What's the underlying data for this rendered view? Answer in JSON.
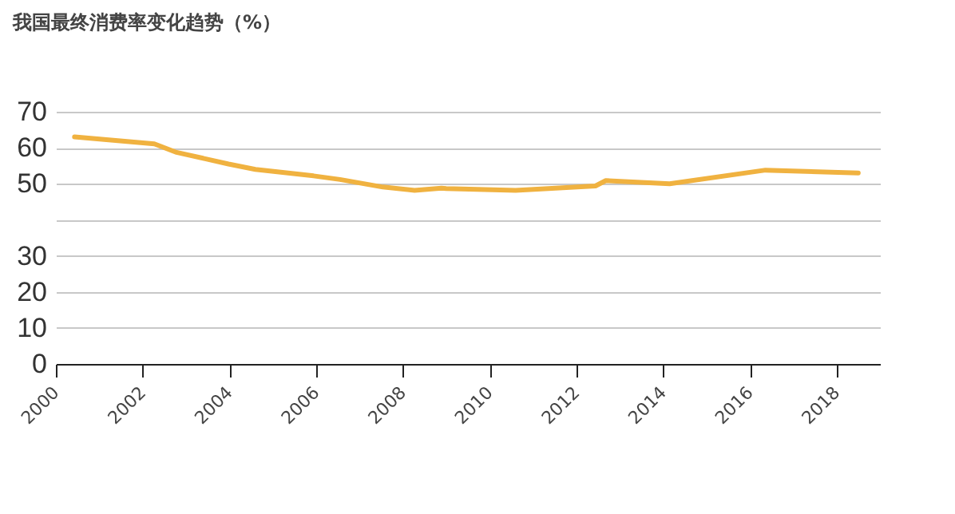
{
  "chart_data": {
    "type": "line",
    "title": "我国最终消费率变化趋势（%）",
    "x": [
      2000.43,
      2002.27,
      2002.76,
      2003.98,
      2004.6,
      2005.94,
      2006.55,
      2007.54,
      2008.27,
      2008.89,
      2009.0,
      2010.6,
      2012.44,
      2012.68,
      2014.15,
      2016.36,
      2018.5
    ],
    "series": [
      {
        "color": "#f0b240",
        "values": [
          63.0,
          61.1,
          58.8,
          55.5,
          54.0,
          52.2,
          51.2,
          49.1,
          48.2,
          48.8,
          48.7,
          48.2,
          49.4,
          50.9,
          50.0,
          53.8,
          53.0
        ]
      }
    ],
    "xlim": [
      2000,
      2019
    ],
    "xticks": [
      2000,
      2002,
      2004,
      2006,
      2008,
      2010,
      2012,
      2014,
      2016,
      2018
    ],
    "ylim": [
      0,
      70
    ],
    "yticks": [
      0,
      10,
      20,
      30,
      {
        "value": 40,
        "label": null
      },
      50,
      60,
      70
    ],
    "grid": "y",
    "marker": "none",
    "line_style": "solid"
  }
}
